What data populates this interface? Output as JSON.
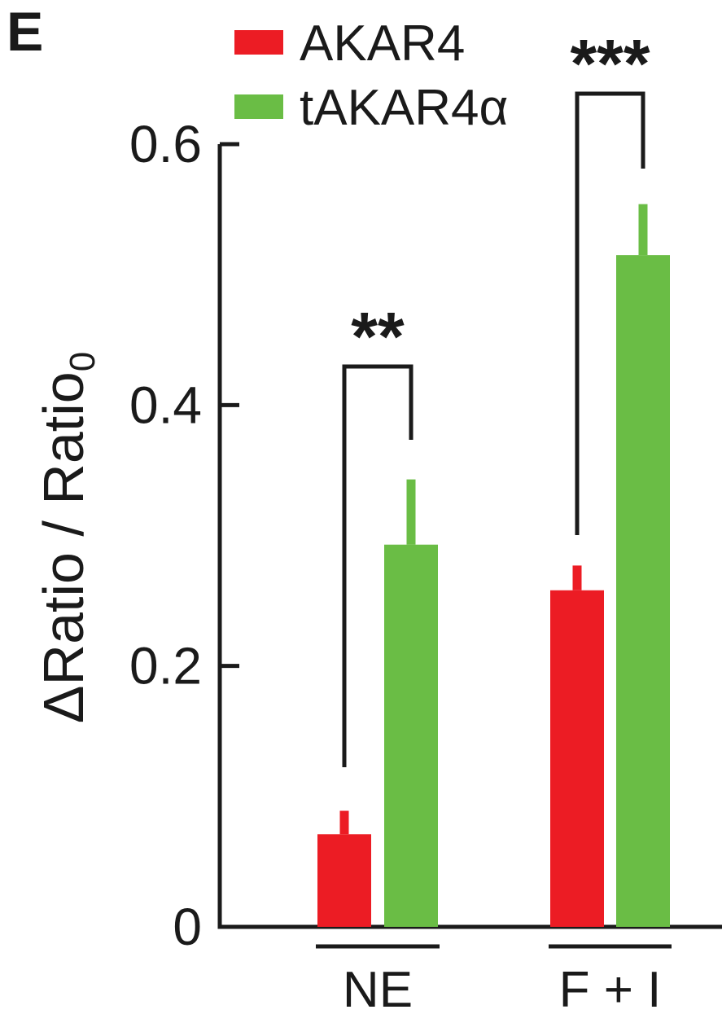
{
  "panel_label": "E",
  "colors": {
    "AKAR4": "#ec1c24",
    "tAKAR4α": "#6abd45",
    "ink": "#1a1a1a"
  },
  "chart_data": {
    "type": "bar",
    "title": "",
    "xlabel": "",
    "ylabel": "ΔRatio / Ratio",
    "ylabel_subscript": "0",
    "ylim": [
      0,
      0.6
    ],
    "yticks": [
      0,
      0.2,
      0.4,
      0.6
    ],
    "ytick_labels": [
      "0",
      "0.2",
      "0.4",
      "0.6"
    ],
    "categories": [
      "NE",
      "F + I"
    ],
    "series": [
      {
        "name": "AKAR4",
        "values": [
          0.071,
          0.258
        ],
        "errors": [
          0.018,
          0.019
        ]
      },
      {
        "name": "tAKAR4α",
        "values": [
          0.293,
          0.515
        ],
        "errors": [
          0.05,
          0.039
        ]
      }
    ],
    "significance": [
      "**",
      "***"
    ],
    "legend": {
      "position": "top-left",
      "entries": [
        "AKAR4",
        "tAKAR4α"
      ]
    },
    "grid": false
  }
}
